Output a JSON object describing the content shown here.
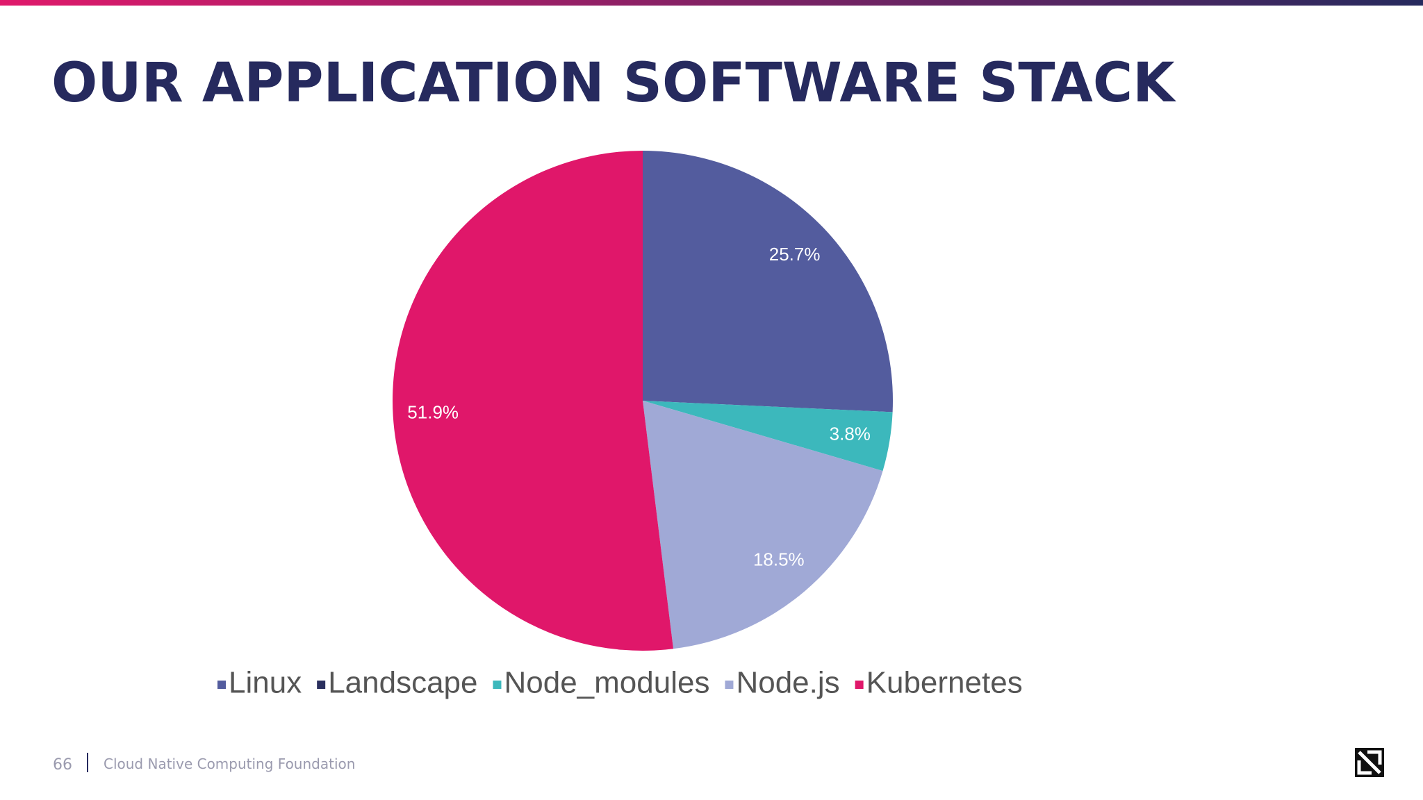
{
  "chart_data": {
    "type": "pie",
    "title": "OUR APPLICATION SOFTWARE STACK",
    "categories": [
      "Linux",
      "Landscape",
      "Node_modules",
      "Node.js",
      "Kubernetes"
    ],
    "values": [
      25.7,
      0,
      3.8,
      18.5,
      51.9
    ],
    "value_labels": [
      "25.7%",
      null,
      "3.8%",
      "18.5%",
      "51.9%"
    ],
    "colors": [
      "#535c9e",
      "#2a2f5e",
      "#3cb8bc",
      "#a0a9d6",
      "#e0176a"
    ],
    "legend": "bottom"
  },
  "footer": {
    "page": "66",
    "organization": "Cloud Native Computing Foundation"
  }
}
